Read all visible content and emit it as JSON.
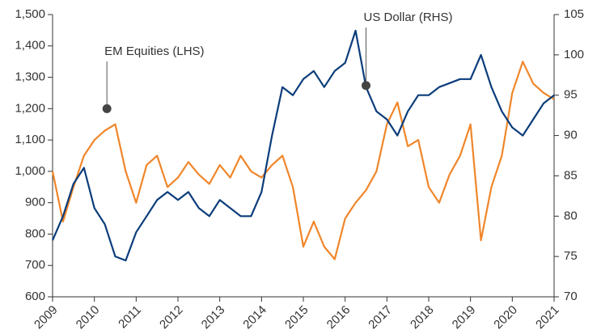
{
  "chart_data": {
    "type": "line",
    "x": [
      2009,
      2009.25,
      2009.5,
      2009.75,
      2010,
      2010.25,
      2010.5,
      2010.75,
      2011,
      2011.25,
      2011.5,
      2011.75,
      2012,
      2012.25,
      2012.5,
      2012.75,
      2013,
      2013.25,
      2013.5,
      2013.75,
      2014,
      2014.25,
      2014.5,
      2014.75,
      2015,
      2015.25,
      2015.5,
      2015.75,
      2016,
      2016.25,
      2016.5,
      2016.75,
      2017,
      2017.25,
      2017.5,
      2017.75,
      2018,
      2018.25,
      2018.5,
      2018.75,
      2019,
      2019.25,
      2019.5,
      2019.75,
      2020,
      2020.25,
      2020.5,
      2020.75,
      2021
    ],
    "series": [
      {
        "name": "EM Equities (LHS)",
        "color": "#f0862a",
        "axis": "y",
        "values": [
          1000,
          840,
          950,
          1050,
          1100,
          1130,
          1150,
          1000,
          900,
          1020,
          1050,
          950,
          980,
          1030,
          990,
          960,
          1020,
          980,
          1050,
          1000,
          980,
          1020,
          1050,
          950,
          760,
          840,
          760,
          720,
          850,
          900,
          940,
          1000,
          1150,
          1220,
          1080,
          1100,
          950,
          900,
          990,
          1050,
          1150,
          780,
          950,
          1050,
          1250,
          1350,
          1280,
          1250,
          1230
        ]
      },
      {
        "name": "US Dollar (RHS)",
        "color": "#0b3d7a",
        "axis": "y2",
        "values": [
          77,
          80,
          84,
          86,
          81,
          79,
          75,
          74.5,
          78,
          80,
          82,
          83,
          82,
          83,
          81,
          80,
          82,
          81,
          80,
          80,
          83,
          90,
          96,
          95,
          97,
          98,
          96,
          98,
          99,
          103,
          96,
          93,
          92,
          90,
          93,
          95,
          95,
          96,
          96.5,
          97,
          97,
          100,
          96,
          93,
          91,
          90,
          92,
          94,
          95
        ]
      }
    ],
    "annotations": [
      {
        "text": "EM Equities (LHS)",
        "x": 2010.3,
        "y": 1200,
        "axis": "y"
      },
      {
        "text": "US Dollar (RHS)",
        "x": 2016.5,
        "y": 96.2,
        "axis": "y2"
      }
    ],
    "xlim": [
      2009,
      2021
    ],
    "xticks": [
      2009,
      2010,
      2011,
      2012,
      2013,
      2014,
      2015,
      2016,
      2017,
      2018,
      2019,
      2020,
      2021
    ],
    "ylim": [
      600,
      1500
    ],
    "yticks": [
      600,
      700,
      800,
      900,
      {
        "value": 1000,
        "label": "1,000"
      },
      {
        "value": 1100,
        "label": "1,100"
      },
      {
        "value": 1200,
        "label": "1,200"
      },
      {
        "value": 1300,
        "label": "1,300"
      },
      {
        "value": 1400,
        "label": "1,400"
      },
      {
        "value": 1500,
        "label": "1,500"
      }
    ],
    "y2lim": [
      70,
      105
    ],
    "y2ticks": [
      70,
      75,
      80,
      85,
      90,
      95,
      100,
      105
    ]
  }
}
